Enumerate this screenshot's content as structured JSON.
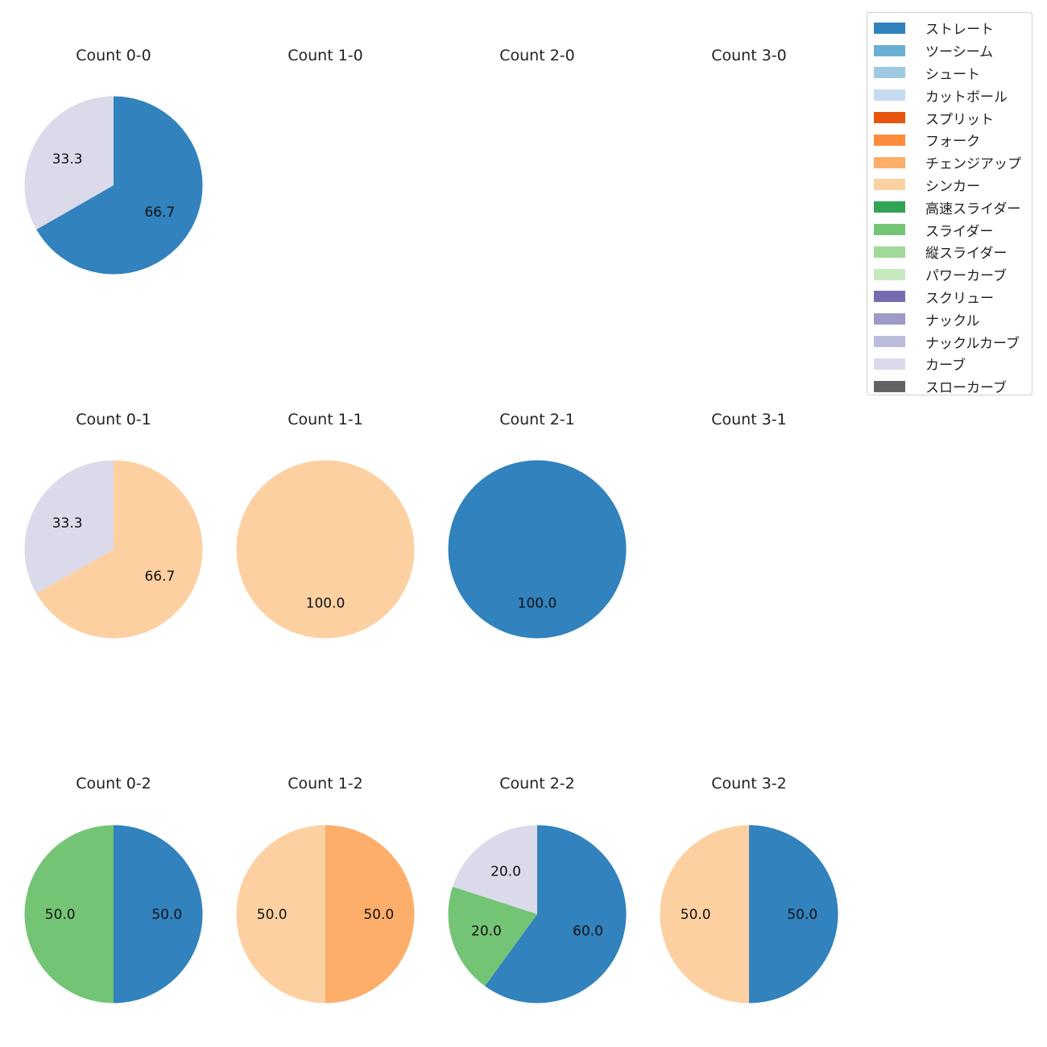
{
  "chart_data": {
    "type": "pie",
    "start_angle_deg": 90,
    "direction": "clockwise",
    "legend_placement": "top-right",
    "legend": [
      {
        "name": "ストレート",
        "color": "#3182bd"
      },
      {
        "name": "ツーシーム",
        "color": "#6baed6"
      },
      {
        "name": "シュート",
        "color": "#9ecae1"
      },
      {
        "name": "カットボール",
        "color": "#c6dbef"
      },
      {
        "name": "スプリット",
        "color": "#e6550d"
      },
      {
        "name": "フォーク",
        "color": "#fd8d3c"
      },
      {
        "name": "チェンジアップ",
        "color": "#fdae6b"
      },
      {
        "name": "シンカー",
        "color": "#fdd0a2"
      },
      {
        "name": "高速スライダー",
        "color": "#31a354"
      },
      {
        "name": "スライダー",
        "color": "#74c476"
      },
      {
        "name": "縦スライダー",
        "color": "#a1d99b"
      },
      {
        "name": "パワーカーブ",
        "color": "#c7e9c0"
      },
      {
        "name": "スクリュー",
        "color": "#756bb1"
      },
      {
        "name": "ナックル",
        "color": "#9e9ac8"
      },
      {
        "name": "ナックルカーブ",
        "color": "#bcbddc"
      },
      {
        "name": "カーブ",
        "color": "#dadaeb"
      },
      {
        "name": "スローカーブ",
        "color": "#636363"
      }
    ],
    "panels": [
      {
        "title": "Count 0-0",
        "slices": [
          {
            "name": "ストレート",
            "value": 66.7
          },
          {
            "name": "カーブ",
            "value": 33.3
          }
        ]
      },
      {
        "title": "Count 1-0",
        "slices": []
      },
      {
        "title": "Count 2-0",
        "slices": []
      },
      {
        "title": "Count 3-0",
        "slices": []
      },
      {
        "title": "Count 0-1",
        "slices": [
          {
            "name": "シンカー",
            "value": 66.7
          },
          {
            "name": "カーブ",
            "value": 33.3
          }
        ]
      },
      {
        "title": "Count 1-1",
        "slices": [
          {
            "name": "シンカー",
            "value": 100.0
          }
        ]
      },
      {
        "title": "Count 2-1",
        "slices": [
          {
            "name": "ストレート",
            "value": 100.0
          }
        ]
      },
      {
        "title": "Count 3-1",
        "slices": []
      },
      {
        "title": "Count 0-2",
        "slices": [
          {
            "name": "ストレート",
            "value": 50.0
          },
          {
            "name": "スライダー",
            "value": 50.0
          }
        ]
      },
      {
        "title": "Count 1-2",
        "slices": [
          {
            "name": "チェンジアップ",
            "value": 50.0
          },
          {
            "name": "シンカー",
            "value": 50.0
          }
        ]
      },
      {
        "title": "Count 2-2",
        "slices": [
          {
            "name": "ストレート",
            "value": 60.0
          },
          {
            "name": "スライダー",
            "value": 20.0
          },
          {
            "name": "カーブ",
            "value": 20.0
          }
        ]
      },
      {
        "title": "Count 3-2",
        "slices": [
          {
            "name": "ストレート",
            "value": 50.0
          },
          {
            "name": "シンカー",
            "value": 50.0
          }
        ]
      }
    ]
  }
}
